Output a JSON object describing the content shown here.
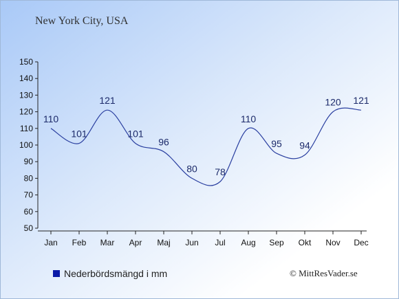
{
  "header": {
    "title": "New York City, USA"
  },
  "legend": {
    "label": "Nederbördsmängd i mm",
    "color": "#0a1aa8"
  },
  "footer": {
    "credit": "© MittResVader.se"
  },
  "chart_data": {
    "type": "line",
    "categories": [
      "Jan",
      "Feb",
      "Mar",
      "Apr",
      "Maj",
      "Jun",
      "Jul",
      "Aug",
      "Sep",
      "Okt",
      "Nov",
      "Dec"
    ],
    "series": [
      {
        "name": "Nederbördsmängd i mm",
        "values": [
          110,
          101,
          121,
          101,
          96,
          80,
          78,
          110,
          95,
          94,
          120,
          121
        ],
        "color": "#2a3fa0"
      }
    ],
    "ylim": [
      50,
      150
    ],
    "yticks": [
      50,
      60,
      70,
      80,
      90,
      100,
      110,
      120,
      130,
      140,
      150
    ],
    "title": "New York City, USA",
    "xlabel": "",
    "ylabel": "",
    "grid": false,
    "legend_position": "bottom-left"
  }
}
